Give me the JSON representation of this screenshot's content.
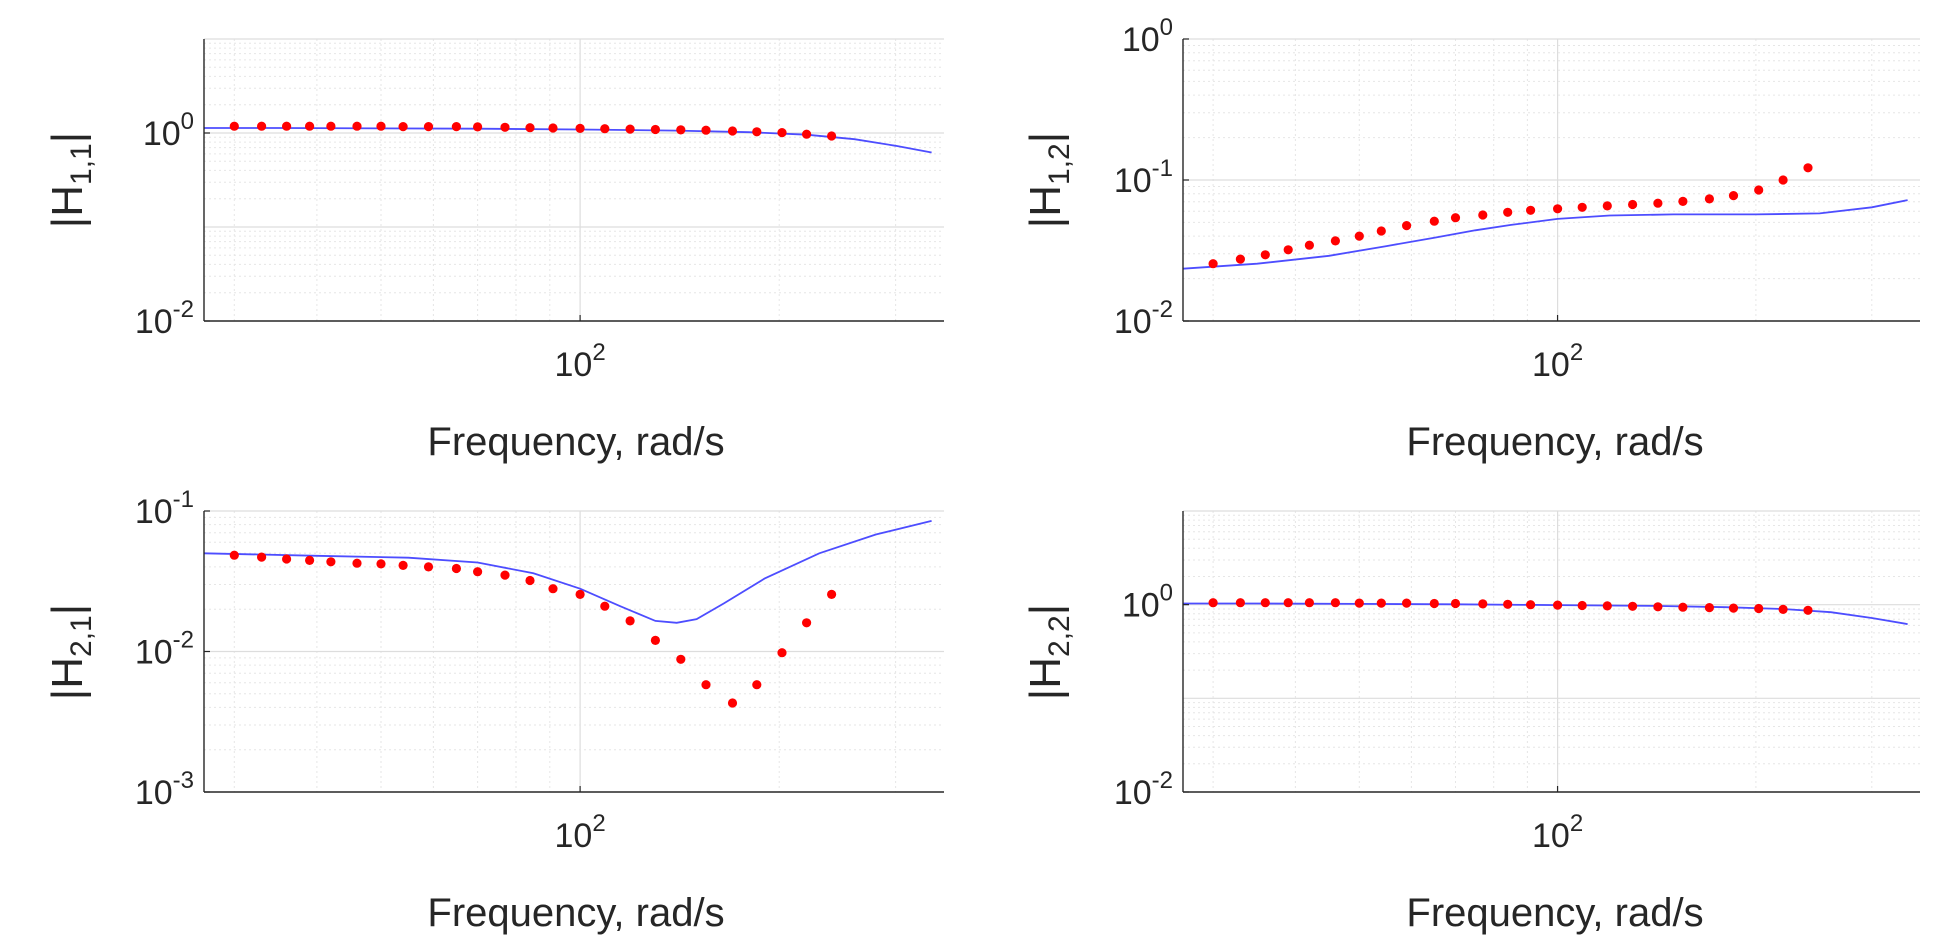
{
  "colors": {
    "model_line": "#4d4dff",
    "data_points": "#ff0000",
    "grid_major": "#dddddd",
    "grid_minor": "#e6e6e6",
    "axis": "#262626"
  },
  "chart_data": [
    {
      "type": "line",
      "name": "H11",
      "xlabel": "Frequency, rad/s",
      "ylabel": {
        "pre": "|H",
        "sub": "1,1",
        "post": "|"
      },
      "xscale": "log",
      "yscale": "log",
      "xlim": [
        27,
        355
      ],
      "ylim": [
        0.01,
        10
      ],
      "x_ticks": [
        {
          "value": 100,
          "base": "10",
          "exp": "2"
        }
      ],
      "y_ticks": [
        {
          "value": 0.01,
          "base": "10",
          "exp": "-2"
        },
        {
          "value": 1,
          "base": "10",
          "exp": "0"
        }
      ],
      "grid": true,
      "minor_grid": true,
      "series": [
        {
          "kind": "line",
          "x": [
            27,
            35,
            50,
            70,
            100,
            140,
            180,
            220,
            260,
            300,
            340
          ],
          "y": [
            1.13,
            1.13,
            1.12,
            1.11,
            1.09,
            1.06,
            1.02,
            0.96,
            0.86,
            0.73,
            0.62
          ]
        },
        {
          "kind": "points",
          "x": [
            30,
            33,
            36,
            39,
            42,
            46,
            50,
            54,
            59,
            65,
            70,
            77,
            84,
            91,
            100,
            109,
            119,
            130,
            142,
            155,
            170,
            185,
            202,
            220,
            240
          ],
          "y": [
            1.18,
            1.18,
            1.18,
            1.18,
            1.18,
            1.18,
            1.18,
            1.17,
            1.17,
            1.17,
            1.16,
            1.15,
            1.14,
            1.13,
            1.12,
            1.11,
            1.1,
            1.09,
            1.08,
            1.07,
            1.05,
            1.03,
            1.01,
            0.97,
            0.93
          ]
        }
      ]
    },
    {
      "type": "line",
      "name": "H12",
      "xlabel": "Frequency, rad/s",
      "ylabel": {
        "pre": "|H",
        "sub": "1,2",
        "post": "|"
      },
      "xscale": "log",
      "yscale": "log",
      "xlim": [
        27,
        355
      ],
      "ylim": [
        0.01,
        1
      ],
      "x_ticks": [
        {
          "value": 100,
          "base": "10",
          "exp": "2"
        }
      ],
      "y_ticks": [
        {
          "value": 0.01,
          "base": "10",
          "exp": "-2"
        },
        {
          "value": 0.1,
          "base": "10",
          "exp": "-1"
        },
        {
          "value": 1,
          "base": "10",
          "exp": "0"
        }
      ],
      "grid": true,
      "minor_grid": true,
      "series": [
        {
          "kind": "line",
          "x": [
            27,
            35,
            45,
            55,
            65,
            75,
            85,
            100,
            120,
            150,
            200,
            250,
            300,
            340
          ],
          "y": [
            0.0235,
            0.0255,
            0.029,
            0.034,
            0.039,
            0.044,
            0.048,
            0.053,
            0.056,
            0.057,
            0.057,
            0.058,
            0.064,
            0.072
          ]
        },
        {
          "kind": "points",
          "x": [
            30,
            33,
            36,
            39,
            42,
            46,
            50,
            54,
            59,
            65,
            70,
            77,
            84,
            91,
            100,
            109,
            119,
            130,
            142,
            155,
            170,
            185,
            202,
            220,
            240
          ],
          "y": [
            0.0255,
            0.0275,
            0.0295,
            0.032,
            0.0345,
            0.037,
            0.04,
            0.0435,
            0.0475,
            0.051,
            0.054,
            0.0565,
            0.059,
            0.061,
            0.0625,
            0.064,
            0.0655,
            0.067,
            0.0685,
            0.0705,
            0.0735,
            0.0775,
            0.085,
            0.1,
            0.122
          ]
        }
      ]
    },
    {
      "type": "line",
      "name": "H21",
      "xlabel": "Frequency, rad/s",
      "ylabel": {
        "pre": "|H",
        "sub": "2,1",
        "post": "|"
      },
      "xscale": "log",
      "yscale": "log",
      "xlim": [
        27,
        355
      ],
      "ylim": [
        0.001,
        0.1
      ],
      "x_ticks": [
        {
          "value": 100,
          "base": "10",
          "exp": "2"
        }
      ],
      "y_ticks": [
        {
          "value": 0.001,
          "base": "10",
          "exp": "-3"
        },
        {
          "value": 0.01,
          "base": "10",
          "exp": "-2"
        },
        {
          "value": 0.1,
          "base": "10",
          "exp": "-1"
        }
      ],
      "grid": true,
      "minor_grid": true,
      "series": [
        {
          "kind": "line",
          "x": [
            27,
            40,
            55,
            70,
            85,
            100,
            115,
            130,
            140,
            150,
            165,
            190,
            230,
            280,
            340
          ],
          "y": [
            0.05,
            0.048,
            0.0465,
            0.043,
            0.036,
            0.028,
            0.021,
            0.0165,
            0.016,
            0.017,
            0.022,
            0.033,
            0.05,
            0.068,
            0.085
          ]
        },
        {
          "kind": "points",
          "x": [
            30,
            33,
            36,
            39,
            42,
            46,
            50,
            54,
            59,
            65,
            70,
            77,
            84,
            91,
            100,
            109,
            119,
            130,
            142,
            155,
            170,
            185,
            202,
            220,
            240
          ],
          "y": [
            0.0485,
            0.047,
            0.0455,
            0.0445,
            0.0435,
            0.0425,
            0.042,
            0.041,
            0.04,
            0.039,
            0.037,
            0.035,
            0.032,
            0.028,
            0.0255,
            0.021,
            0.0165,
            0.012,
            0.0088,
            0.0058,
            0.0043,
            0.0058,
            0.0098,
            0.016,
            0.0255
          ]
        }
      ]
    },
    {
      "type": "line",
      "name": "H22",
      "xlabel": "Frequency, rad/s",
      "ylabel": {
        "pre": "|H",
        "sub": "2,2",
        "post": "|"
      },
      "xscale": "log",
      "yscale": "log",
      "xlim": [
        27,
        355
      ],
      "ylim": [
        0.01,
        10
      ],
      "x_ticks": [
        {
          "value": 100,
          "base": "10",
          "exp": "2"
        }
      ],
      "y_ticks": [
        {
          "value": 0.01,
          "base": "10",
          "exp": "-2"
        },
        {
          "value": 1,
          "base": "10",
          "exp": "0"
        }
      ],
      "grid": true,
      "minor_grid": true,
      "series": [
        {
          "kind": "line",
          "x": [
            27,
            35,
            50,
            70,
            100,
            140,
            180,
            220,
            260,
            300,
            340
          ],
          "y": [
            1.03,
            1.03,
            1.02,
            1.01,
            0.99,
            0.97,
            0.94,
            0.9,
            0.83,
            0.72,
            0.62
          ]
        },
        {
          "kind": "points",
          "x": [
            30,
            33,
            36,
            39,
            42,
            46,
            50,
            54,
            59,
            65,
            70,
            77,
            84,
            91,
            100,
            109,
            119,
            130,
            142,
            155,
            170,
            185,
            202,
            220,
            240
          ],
          "y": [
            1.05,
            1.05,
            1.05,
            1.05,
            1.05,
            1.05,
            1.04,
            1.04,
            1.04,
            1.03,
            1.03,
            1.02,
            1.01,
            1.0,
            0.99,
            0.98,
            0.97,
            0.96,
            0.95,
            0.94,
            0.93,
            0.92,
            0.91,
            0.89,
            0.87
          ]
        }
      ]
    }
  ]
}
